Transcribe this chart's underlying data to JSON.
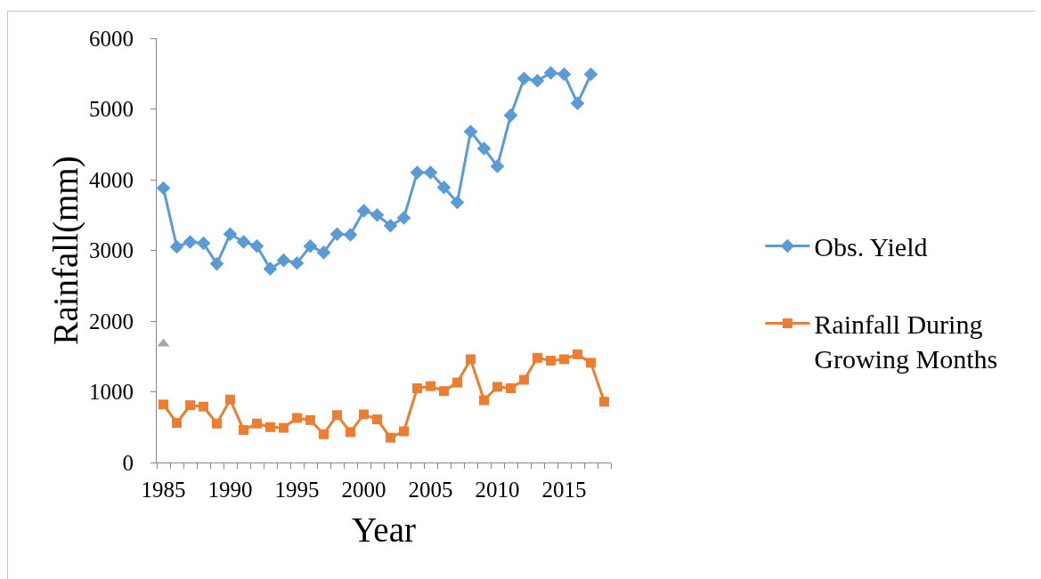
{
  "chart_data": {
    "type": "line",
    "xlabel": "Year",
    "ylabel": "Rainfall(mm)",
    "categories": [
      "1985",
      null,
      null,
      null,
      null,
      "1990",
      null,
      null,
      null,
      null,
      "1995",
      null,
      null,
      null,
      null,
      "2000",
      null,
      null,
      null,
      null,
      "2005",
      null,
      null,
      null,
      null,
      "2010",
      null,
      null,
      null,
      null,
      "2015",
      null,
      null,
      null
    ],
    "series": [
      {
        "name": "Obs. Yield",
        "color": "#5b9bd5",
        "marker": "diamond",
        "values": [
          3880,
          3050,
          3120,
          3100,
          2810,
          3230,
          3120,
          3060,
          2740,
          2860,
          2820,
          3060,
          2970,
          3230,
          3220,
          3560,
          3500,
          3350,
          3460,
          4100,
          4100,
          3890,
          3680,
          4680,
          4440,
          4190,
          4910,
          5430,
          5400,
          5510,
          5490,
          5080,
          5490,
          null
        ]
      },
      {
        "name": "Rainfall During Growing Months",
        "color": "#ed7d31",
        "marker": "square",
        "values": [
          820,
          560,
          810,
          790,
          550,
          890,
          460,
          550,
          500,
          490,
          630,
          600,
          400,
          670,
          430,
          680,
          610,
          350,
          440,
          1050,
          1080,
          1010,
          1130,
          1460,
          880,
          1070,
          1050,
          1170,
          1480,
          1440,
          1460,
          1530,
          1410,
          860
        ]
      },
      {
        "type": "scatter",
        "color": "#a5a5a5",
        "marker": "triangle",
        "values": [
          1680,
          null,
          null,
          null,
          null,
          null,
          null,
          null,
          null,
          null,
          null,
          null,
          null,
          null,
          null,
          null,
          null,
          null,
          null,
          null,
          null,
          null,
          null,
          null,
          null,
          null,
          null,
          null,
          null,
          null,
          null,
          null,
          null,
          null
        ]
      }
    ],
    "ylim": [
      0,
      6000
    ],
    "yticks": [
      0,
      1000,
      2000,
      3000,
      4000,
      5000,
      6000
    ],
    "legend": "right",
    "line_style": "solid"
  }
}
